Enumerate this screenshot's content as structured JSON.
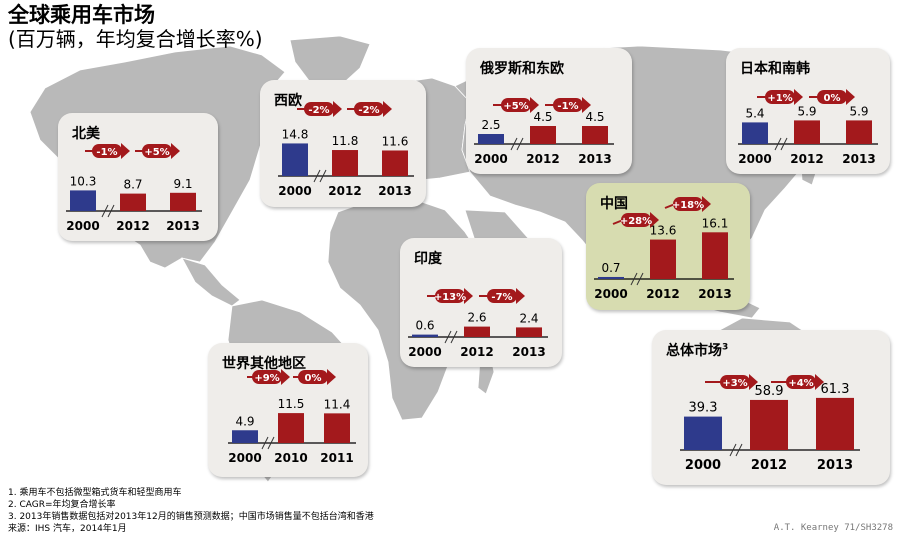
{
  "title": "全球乘用车市场",
  "subtitle": "(百万辆，年均复合增长率%)",
  "colors": {
    "base": "#2e3a8c",
    "current": "#a3191c",
    "card": "#efedea",
    "china_card": "#d7dcb0",
    "map": "#b9b9b9"
  },
  "chart_data": [
    {
      "type": "bar",
      "region": "北美",
      "categories": [
        "2000",
        "2012",
        "2013"
      ],
      "values": [
        10.3,
        8.7,
        9.1
      ],
      "value_labels": [
        "10.3",
        "8.7",
        "9.1"
      ],
      "cagr": [
        "-1%",
        "+5%"
      ]
    },
    {
      "type": "bar",
      "region": "西欧",
      "categories": [
        "2000",
        "2012",
        "2013"
      ],
      "values": [
        14.8,
        11.8,
        11.6
      ],
      "value_labels": [
        "14.8",
        "11.8",
        "11.6"
      ],
      "cagr": [
        "-2%",
        "-2%"
      ]
    },
    {
      "type": "bar",
      "region": "俄罗斯和东欧",
      "categories": [
        "2000",
        "2012",
        "2013"
      ],
      "values": [
        2.5,
        4.5,
        4.5
      ],
      "value_labels": [
        "2.5",
        "4.5",
        "4.5"
      ],
      "cagr": [
        "+5%",
        "-1%"
      ]
    },
    {
      "type": "bar",
      "region": "日本和南韩",
      "categories": [
        "2000",
        "2012",
        "2013"
      ],
      "values": [
        5.4,
        5.9,
        5.9
      ],
      "value_labels": [
        "5.4",
        "5.9",
        "5.9"
      ],
      "cagr": [
        "+1%",
        "0%"
      ]
    },
    {
      "type": "bar",
      "region": "中国",
      "categories": [
        "2000",
        "2012",
        "2013"
      ],
      "values": [
        0.7,
        13.6,
        16.1
      ],
      "value_labels": [
        "0.7",
        "13.6",
        "16.1"
      ],
      "cagr": [
        "+28%",
        "+18%"
      ]
    },
    {
      "type": "bar",
      "region": "印度",
      "categories": [
        "2000",
        "2012",
        "2013"
      ],
      "values": [
        0.6,
        2.6,
        2.4
      ],
      "value_labels": [
        "0.6",
        "2.6",
        "2.4"
      ],
      "cagr": [
        "+13%",
        "-7%"
      ]
    },
    {
      "type": "bar",
      "region": "世界其他地区",
      "categories": [
        "2000",
        "2010",
        "2011"
      ],
      "values": [
        4.9,
        11.5,
        11.4
      ],
      "value_labels": [
        "4.9",
        "11.5",
        "11.4"
      ],
      "cagr": [
        "+9%",
        "0%"
      ]
    },
    {
      "type": "bar",
      "region": "总体市场",
      "region_sup": "3",
      "categories": [
        "2000",
        "2012",
        "2013"
      ],
      "values": [
        39.3,
        58.9,
        61.3
      ],
      "value_labels": [
        "39.3",
        "58.9",
        "61.3"
      ],
      "cagr": [
        "+3%",
        "+4%"
      ]
    }
  ],
  "footnotes": [
    "1. 乘用车不包括微型箱式货车和轻型商用车",
    "2. CAGR=年均复合增长率",
    "3. 2013年销售数据包括对2013年12月的销售预测数据；中国市场销售量不包括台湾和香港",
    "来源：IHS 汽车，2014年1月"
  ],
  "source_code": "A.T. Kearney 71/SH3278"
}
